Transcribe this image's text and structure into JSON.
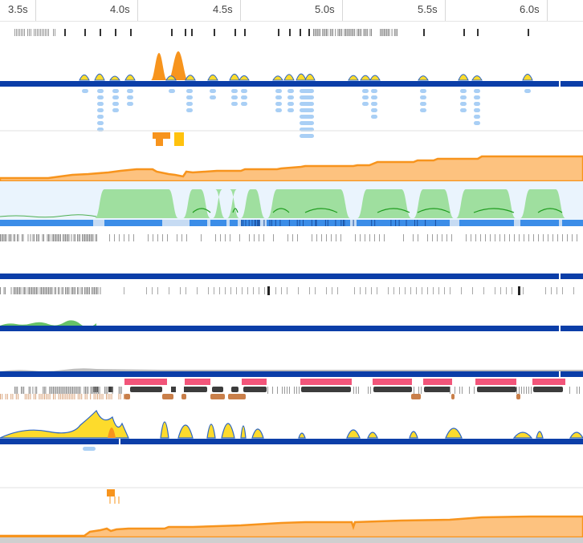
{
  "ruler": {
    "ticks": [
      "3.5s",
      "4.0s",
      "4.5s",
      "5.0s",
      "5.5s",
      "6.0s"
    ]
  },
  "colors": {
    "thread_bar": "#0b3ea8",
    "gc_orange": "#f7941d",
    "gc_fill": "#fdc27f",
    "cpu_green": "#9fdf9f",
    "frame_blue": "#3b8de8",
    "event_light_blue": "#a9cff5",
    "sample_yellow": "#fddb2c",
    "marker_pink": "#f2557a",
    "marker_dark": "#3c3c3c",
    "marker_brown": "#c97f4a",
    "panel_bg": "#eaf4fd"
  },
  "icons": []
}
